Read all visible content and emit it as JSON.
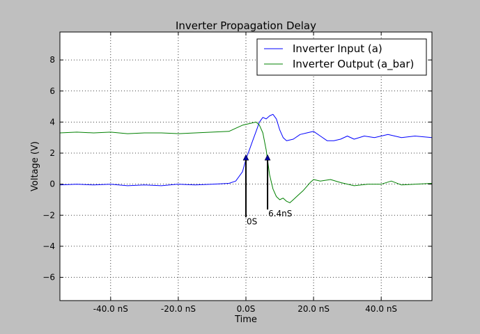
{
  "chart_data": {
    "type": "line",
    "title": "Inverter Propagation Delay",
    "xlabel": "Time",
    "ylabel": "Voltage (V)",
    "xlim": [
      -55,
      55
    ],
    "ylim": [
      -7.5,
      9.8
    ],
    "x_ticks": [
      -40,
      -20,
      0,
      20,
      40
    ],
    "x_tick_labels": [
      "-40.0 nS",
      "-20.0 nS",
      "0.0S",
      "20.0 nS",
      "40.0 nS"
    ],
    "y_ticks": [
      -6,
      -4,
      -2,
      0,
      2,
      4,
      6,
      8
    ],
    "y_tick_labels": [
      "−6",
      "−4",
      "−2",
      "0",
      "2",
      "4",
      "6",
      "8"
    ],
    "grid": true,
    "legend_position": "top-right",
    "series": [
      {
        "name": "Inverter Input (a)",
        "color": "#0000ff",
        "points": [
          [
            -55,
            -0.05
          ],
          [
            -50,
            0.0
          ],
          [
            -45,
            -0.05
          ],
          [
            -40,
            0.0
          ],
          [
            -35,
            -0.1
          ],
          [
            -30,
            -0.05
          ],
          [
            -25,
            -0.1
          ],
          [
            -20,
            0.0
          ],
          [
            -15,
            -0.05
          ],
          [
            -10,
            0.0
          ],
          [
            -5,
            0.05
          ],
          [
            -3,
            0.2
          ],
          [
            -1,
            0.8
          ],
          [
            0,
            1.6
          ],
          [
            1,
            2.2
          ],
          [
            2,
            2.8
          ],
          [
            3,
            3.4
          ],
          [
            4,
            4.0
          ],
          [
            5,
            4.3
          ],
          [
            6,
            4.2
          ],
          [
            7,
            4.4
          ],
          [
            8,
            4.5
          ],
          [
            9,
            4.2
          ],
          [
            10,
            3.5
          ],
          [
            11,
            3.0
          ],
          [
            12,
            2.8
          ],
          [
            14,
            2.9
          ],
          [
            16,
            3.2
          ],
          [
            18,
            3.3
          ],
          [
            20,
            3.4
          ],
          [
            22,
            3.1
          ],
          [
            24,
            2.8
          ],
          [
            26,
            2.8
          ],
          [
            28,
            2.9
          ],
          [
            30,
            3.1
          ],
          [
            32,
            2.9
          ],
          [
            35,
            3.1
          ],
          [
            38,
            3.0
          ],
          [
            42,
            3.2
          ],
          [
            46,
            3.0
          ],
          [
            50,
            3.1
          ],
          [
            55,
            3.0
          ]
        ]
      },
      {
        "name": "Inverter Output (a_bar)",
        "color": "#008000",
        "points": [
          [
            -55,
            3.3
          ],
          [
            -50,
            3.35
          ],
          [
            -45,
            3.3
          ],
          [
            -40,
            3.35
          ],
          [
            -35,
            3.25
          ],
          [
            -30,
            3.3
          ],
          [
            -25,
            3.3
          ],
          [
            -20,
            3.25
          ],
          [
            -15,
            3.3
          ],
          [
            -10,
            3.35
          ],
          [
            -5,
            3.4
          ],
          [
            -3,
            3.6
          ],
          [
            -1,
            3.8
          ],
          [
            1,
            3.9
          ],
          [
            3,
            4.0
          ],
          [
            4,
            3.8
          ],
          [
            5,
            3.3
          ],
          [
            6,
            2.2
          ],
          [
            7,
            0.6
          ],
          [
            8,
            -0.3
          ],
          [
            9,
            -0.8
          ],
          [
            10,
            -1.0
          ],
          [
            11,
            -0.9
          ],
          [
            12,
            -1.1
          ],
          [
            13,
            -1.2
          ],
          [
            14,
            -1.0
          ],
          [
            15,
            -0.8
          ],
          [
            17,
            -0.4
          ],
          [
            19,
            0.1
          ],
          [
            20,
            0.3
          ],
          [
            22,
            0.2
          ],
          [
            25,
            0.3
          ],
          [
            28,
            0.1
          ],
          [
            32,
            -0.1
          ],
          [
            36,
            0.0
          ],
          [
            40,
            0.0
          ],
          [
            43,
            0.2
          ],
          [
            46,
            -0.05
          ],
          [
            50,
            0.0
          ],
          [
            55,
            0.05
          ]
        ]
      }
    ],
    "annotations": [
      {
        "text": "0S",
        "x": 0,
        "y": 1.9,
        "text_x": 0,
        "text_y": -2.0
      },
      {
        "text": "6.4nS",
        "x": 6.4,
        "y": 1.9,
        "text_x": 6.4,
        "text_y": -1.5
      }
    ]
  }
}
